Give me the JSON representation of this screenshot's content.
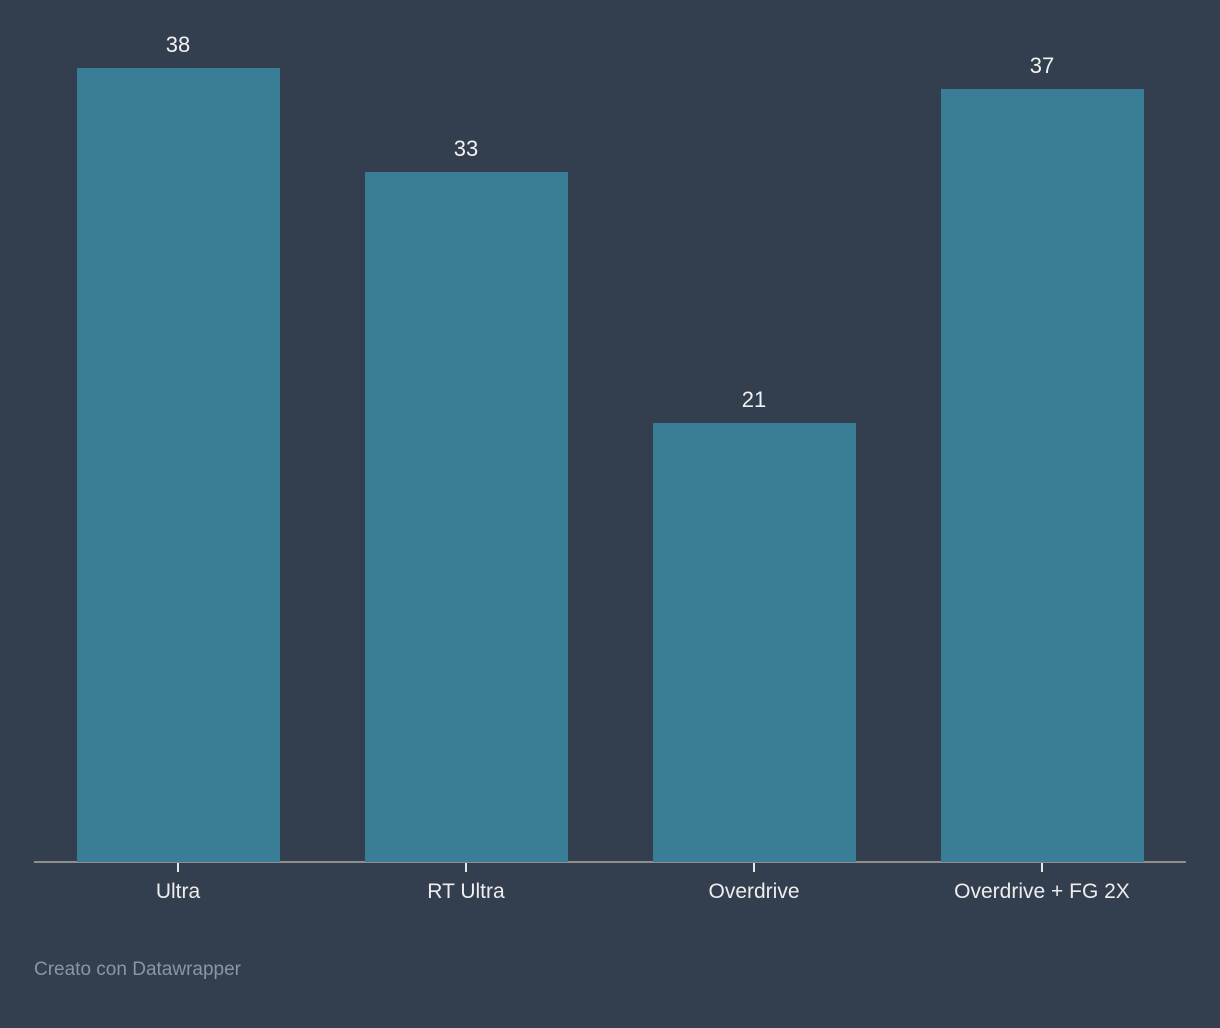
{
  "chart_data": {
    "type": "bar",
    "categories": [
      "Ultra",
      "RT Ultra",
      "Overdrive",
      "Overdrive + FG 2X"
    ],
    "values": [
      38,
      33,
      21,
      37
    ],
    "value_labels": [
      "38",
      "33",
      "21",
      "37"
    ],
    "title": "",
    "xlabel": "",
    "ylabel": "",
    "ylim": [
      0,
      41.25
    ],
    "grid": false,
    "legend": "none",
    "orientation": "vertical"
  },
  "footer": {
    "credit": "Creato con Datawrapper"
  },
  "colors": {
    "background": "#333e4e",
    "bar": "#3a7d96",
    "axis_line": "#8e8e8e",
    "tick": "#e8e8e8",
    "value_label": "#f2f2f2",
    "category_label": "#ededed",
    "credit": "#8b95a3"
  }
}
